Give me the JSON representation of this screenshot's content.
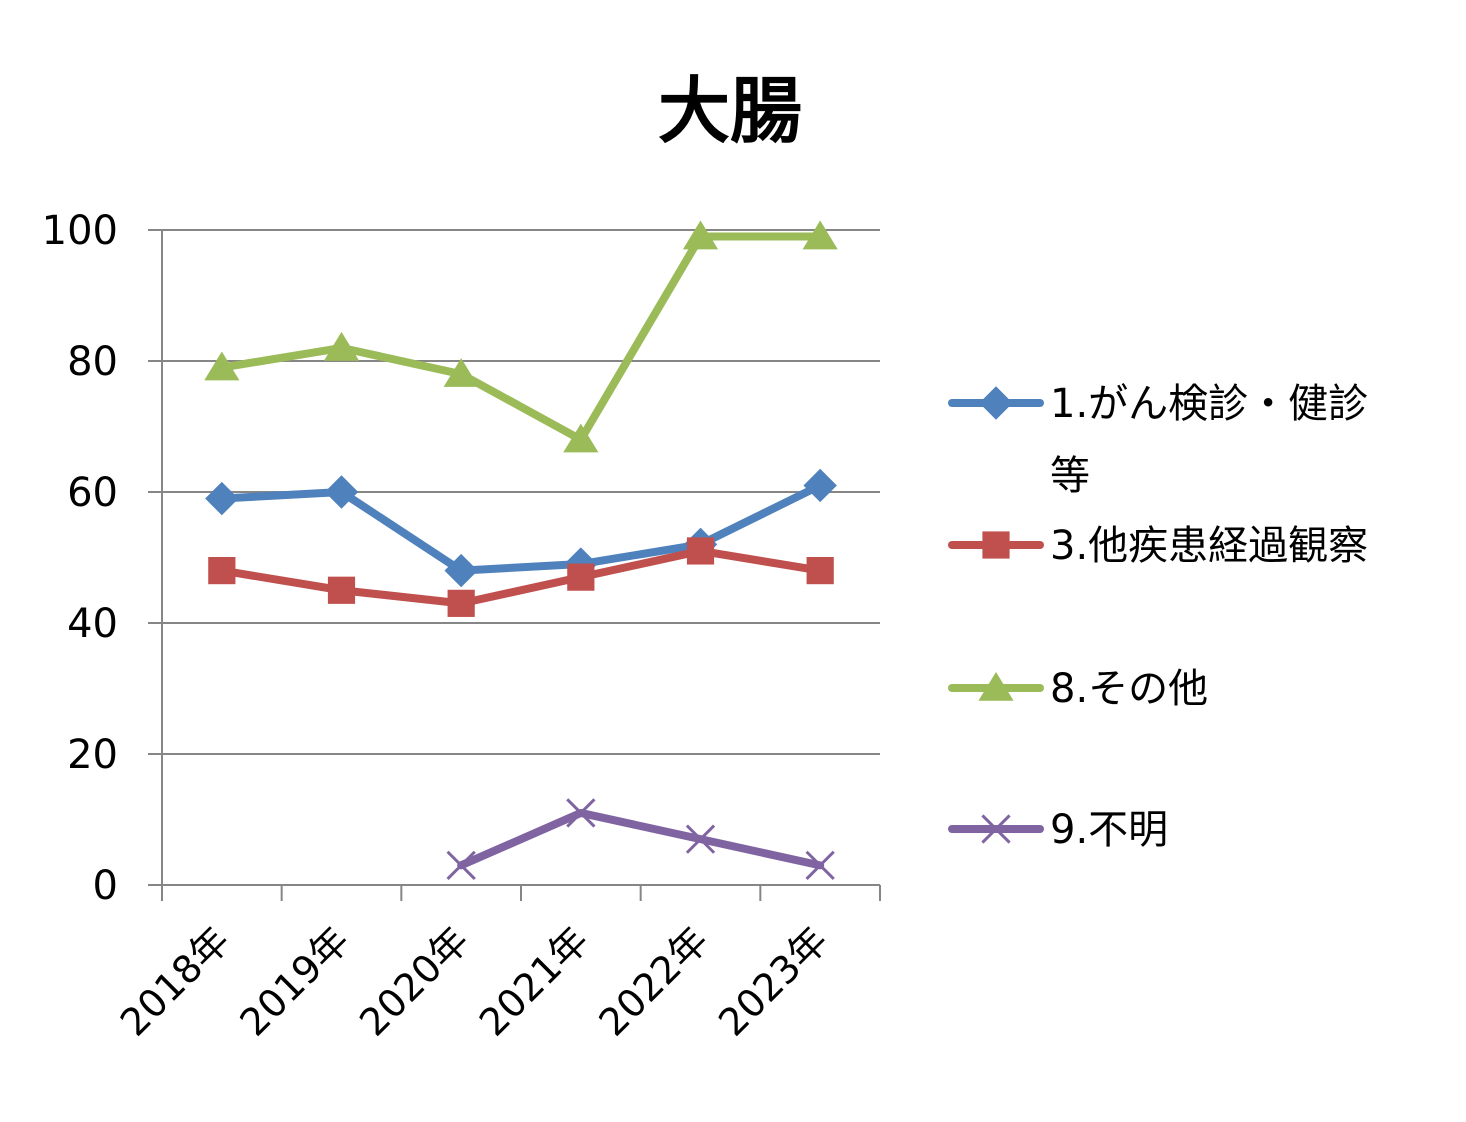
{
  "chart_data": {
    "type": "line",
    "title": "大腸",
    "xlabel": "",
    "ylabel": "",
    "categories": [
      "2018年",
      "2019年",
      "2020年",
      "2021年",
      "2022年",
      "2023年"
    ],
    "ylim": [
      0,
      100
    ],
    "yticks": [
      0,
      20,
      40,
      60,
      80,
      100
    ],
    "grid": true,
    "legend_position": "right",
    "series": [
      {
        "name": "1.がん検診・健診等",
        "legend_lines": [
          "1.がん検診・健診",
          "等"
        ],
        "color": "#4F81BD",
        "marker": "diamond",
        "values": [
          59,
          60,
          48,
          49,
          52,
          61
        ]
      },
      {
        "name": "3.他疾患経過観察",
        "legend_lines": [
          "3.他疾患経過観察"
        ],
        "color": "#C0504D",
        "marker": "square",
        "values": [
          48,
          45,
          43,
          47,
          51,
          48
        ]
      },
      {
        "name": "8.その他",
        "legend_lines": [
          "8.その他"
        ],
        "color": "#9BBB59",
        "marker": "triangle",
        "values": [
          79,
          82,
          78,
          68,
          99,
          99
        ]
      },
      {
        "name": "9.不明",
        "legend_lines": [
          "9.不明"
        ],
        "color": "#8064A2",
        "marker": "x",
        "values": [
          null,
          null,
          3,
          11,
          7,
          3
        ]
      }
    ]
  }
}
